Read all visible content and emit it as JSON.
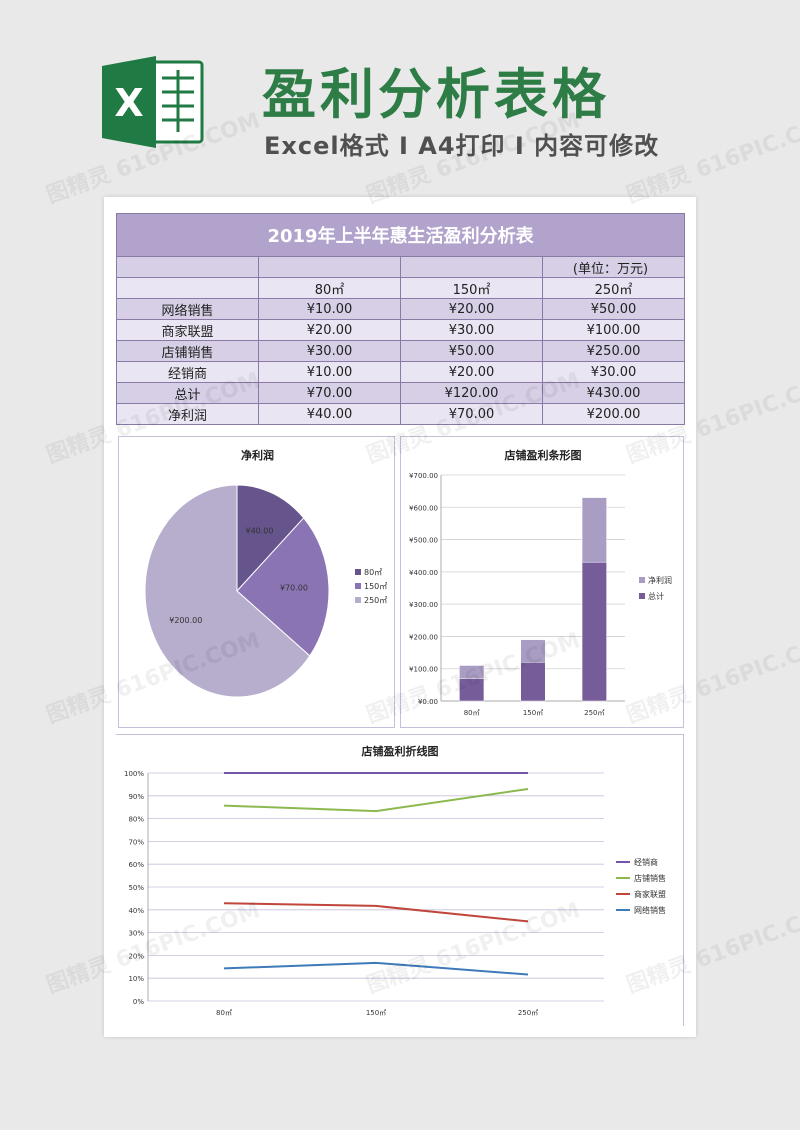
{
  "header": {
    "title": "盈利分析表格",
    "subtitle": "Excel格式 I A4打印 I 内容可修改",
    "logo_letter": "X"
  },
  "table": {
    "title": "2019年上半年惠生活盈利分析表",
    "unit": "(单位：万元)",
    "sizes": [
      "80㎡",
      "150㎡",
      "250㎡"
    ],
    "rows": [
      {
        "label": "网络销售",
        "values": [
          "¥10.00",
          "¥20.00",
          "¥50.00"
        ]
      },
      {
        "label": "商家联盟",
        "values": [
          "¥20.00",
          "¥30.00",
          "¥100.00"
        ]
      },
      {
        "label": "店铺销售",
        "values": [
          "¥30.00",
          "¥50.00",
          "¥250.00"
        ]
      },
      {
        "label": "经销商",
        "values": [
          "¥10.00",
          "¥20.00",
          "¥30.00"
        ]
      },
      {
        "label": "总计",
        "values": [
          "¥70.00",
          "¥120.00",
          "¥430.00"
        ]
      },
      {
        "label": "净利润",
        "values": [
          "¥40.00",
          "¥70.00",
          "¥200.00"
        ]
      }
    ]
  },
  "chart_data": [
    {
      "type": "pie",
      "title": "净利润",
      "labels": [
        "80㎡",
        "150㎡",
        "250㎡"
      ],
      "values": [
        40,
        70,
        200
      ],
      "value_labels": [
        "¥40.00",
        "¥70.00",
        "¥200.00"
      ],
      "colors": [
        "#66548c",
        "#8a74b4",
        "#b7adcc"
      ],
      "legend": "right"
    },
    {
      "type": "bar",
      "stacked": true,
      "title": "店铺盈利条形图",
      "categories": [
        "80㎡",
        "150㎡",
        "250㎡"
      ],
      "series": [
        {
          "name": "总计",
          "values": [
            70,
            120,
            430
          ],
          "color": "#765d9a"
        },
        {
          "name": "净利润",
          "values": [
            40,
            70,
            200
          ],
          "color": "#aa9dc4"
        }
      ],
      "ylim": [
        0,
        700
      ],
      "yticks": [
        0,
        100,
        200,
        300,
        400,
        500,
        600,
        700
      ],
      "ytick_labels": [
        "¥0.00",
        "¥100.00",
        "¥200.00",
        "¥300.00",
        "¥400.00",
        "¥500.00",
        "¥600.00",
        "¥700.00"
      ],
      "grid": true,
      "legend": "right"
    },
    {
      "type": "line",
      "title": "店铺盈利折线图",
      "categories": [
        "80㎡",
        "150㎡",
        "250㎡"
      ],
      "series": [
        {
          "name": "经销商",
          "values": [
            100,
            100,
            100
          ],
          "color": "#7356a8"
        },
        {
          "name": "店铺销售",
          "values": [
            85.7,
            83.3,
            93.0
          ],
          "color": "#8cb94f"
        },
        {
          "name": "商家联盟",
          "values": [
            42.9,
            41.7,
            34.9
          ],
          "color": "#c0463c"
        },
        {
          "name": "网络销售",
          "values": [
            14.3,
            16.7,
            11.6
          ],
          "color": "#3e79b9"
        }
      ],
      "ylim": [
        0,
        100
      ],
      "yticks": [
        0,
        10,
        20,
        30,
        40,
        50,
        60,
        70,
        80,
        90,
        100
      ],
      "ytick_labels": [
        "0%",
        "10%",
        "20%",
        "30%",
        "40%",
        "50%",
        "60%",
        "70%",
        "80%",
        "90%",
        "100%"
      ],
      "grid": true,
      "legend": "right"
    }
  ],
  "watermark": "图精灵 616PIC.COM"
}
